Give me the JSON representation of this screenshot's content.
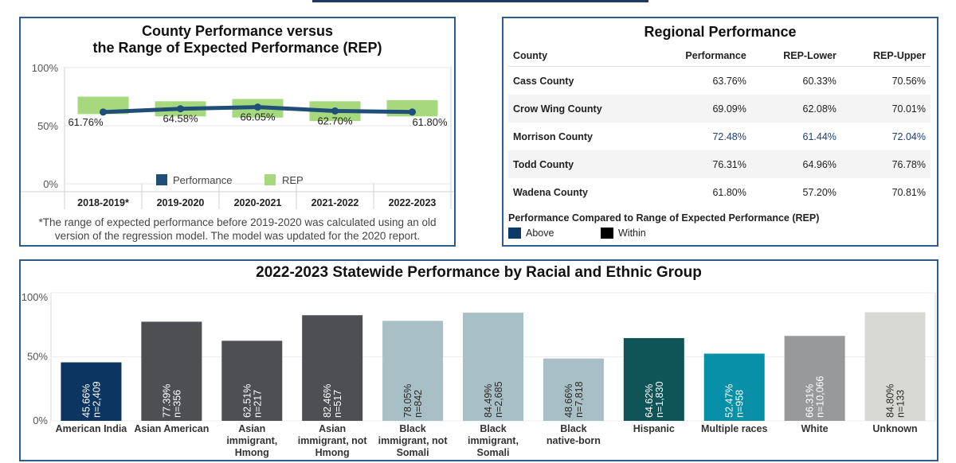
{
  "left_panel": {
    "title_line1": "County Performance versus",
    "title_line2": "the Range of Expected Performance (REP)",
    "footnote_line1": "*The range of expected performance before 2019-2020 was calculated using an old",
    "footnote_line2": "version of the regression model. The model was updated for the 2020 report."
  },
  "right_panel": {
    "title": "Regional Performance",
    "columns": [
      "County",
      "Performance",
      "REP-Lower",
      "REP-Upper"
    ],
    "rows": [
      {
        "county": "Cass County",
        "performance": "63.76%",
        "rep_lower": "60.33%",
        "rep_upper": "70.56%",
        "status": "within"
      },
      {
        "county": "Crow Wing County",
        "performance": "69.09%",
        "rep_lower": "62.08%",
        "rep_upper": "70.01%",
        "status": "within"
      },
      {
        "county": "Morrison County",
        "performance": "72.48%",
        "rep_lower": "61.44%",
        "rep_upper": "72.04%",
        "status": "above"
      },
      {
        "county": "Todd County",
        "performance": "76.31%",
        "rep_lower": "64.96%",
        "rep_upper": "76.78%",
        "status": "within"
      },
      {
        "county": "Wadena County",
        "performance": "61.80%",
        "rep_lower": "57.20%",
        "rep_upper": "70.81%",
        "status": "within"
      }
    ],
    "legend_title": "Performance Compared to Range of Expected Performance (REP)",
    "legend": [
      {
        "label": "Above",
        "color": "#0b3a66"
      },
      {
        "label": "Within",
        "color": "#000000"
      }
    ]
  },
  "chart_data": [
    {
      "type": "line",
      "categories": [
        "2018-2019*",
        "2019-2020",
        "2020-2021",
        "2021-2022",
        "2022-2023"
      ],
      "series": [
        {
          "name": "Performance",
          "values": [
            61.76,
            64.58,
            66.05,
            62.7,
            61.8
          ],
          "labels": [
            "61.76%",
            "64.58%",
            "66.05%",
            "62.70%",
            "61.80%"
          ],
          "color": "#1f4e79"
        }
      ],
      "rep_bands": [
        [
          60,
          75
        ],
        [
          58,
          71
        ],
        [
          57,
          73
        ],
        [
          54,
          71
        ],
        [
          58,
          72
        ]
      ],
      "rep_name": "REP",
      "rep_color": "#a6d87d",
      "yticks": [
        "100%",
        "50%",
        "0%"
      ],
      "ylim": [
        0,
        100
      ],
      "legend_position": "bottom-center"
    },
    {
      "type": "bar",
      "title": "2022-2023 Statewide Performance by Racial and Ethnic Group",
      "categories": [
        [
          "American India"
        ],
        [
          "Asian American"
        ],
        [
          "Asian",
          "immigrant,",
          "Hmong"
        ],
        [
          "Asian",
          "immigrant, not",
          "Hmong"
        ],
        [
          "Black",
          "immigrant, not",
          "Somali"
        ],
        [
          "Black",
          "immigrant,",
          "Somali"
        ],
        [
          "Black",
          "native-born"
        ],
        [
          "Hispanic"
        ],
        [
          "Multiple races"
        ],
        [
          "White"
        ],
        [
          "Unknown"
        ]
      ],
      "values": [
        45.66,
        77.39,
        62.51,
        82.46,
        78.05,
        84.49,
        48.66,
        64.62,
        52.47,
        66.31,
        84.8
      ],
      "value_labels": [
        "45.66%",
        "77.39%",
        "62.51%",
        "82.46%",
        "78.05%",
        "84.49%",
        "48.66%",
        "64.62%",
        "52.47%",
        "66.31%",
        "84.80%"
      ],
      "n_labels": [
        "n=2,409",
        "n=356",
        "n=217",
        "n=517",
        "n=842",
        "n=2,685",
        "n=7,818",
        "n=1,830",
        "n=958",
        "n=10,066",
        "n=133"
      ],
      "colors": [
        "#0c3561",
        "#4d4f53",
        "#4d4f53",
        "#4d4f53",
        "#a9bfc6",
        "#a9bfc6",
        "#a9bfc6",
        "#0f5457",
        "#0790a8",
        "#98999b",
        "#d8d8d4"
      ],
      "yticks": [
        "100%",
        "50%",
        "0%"
      ],
      "ylim": [
        0,
        100
      ]
    }
  ]
}
